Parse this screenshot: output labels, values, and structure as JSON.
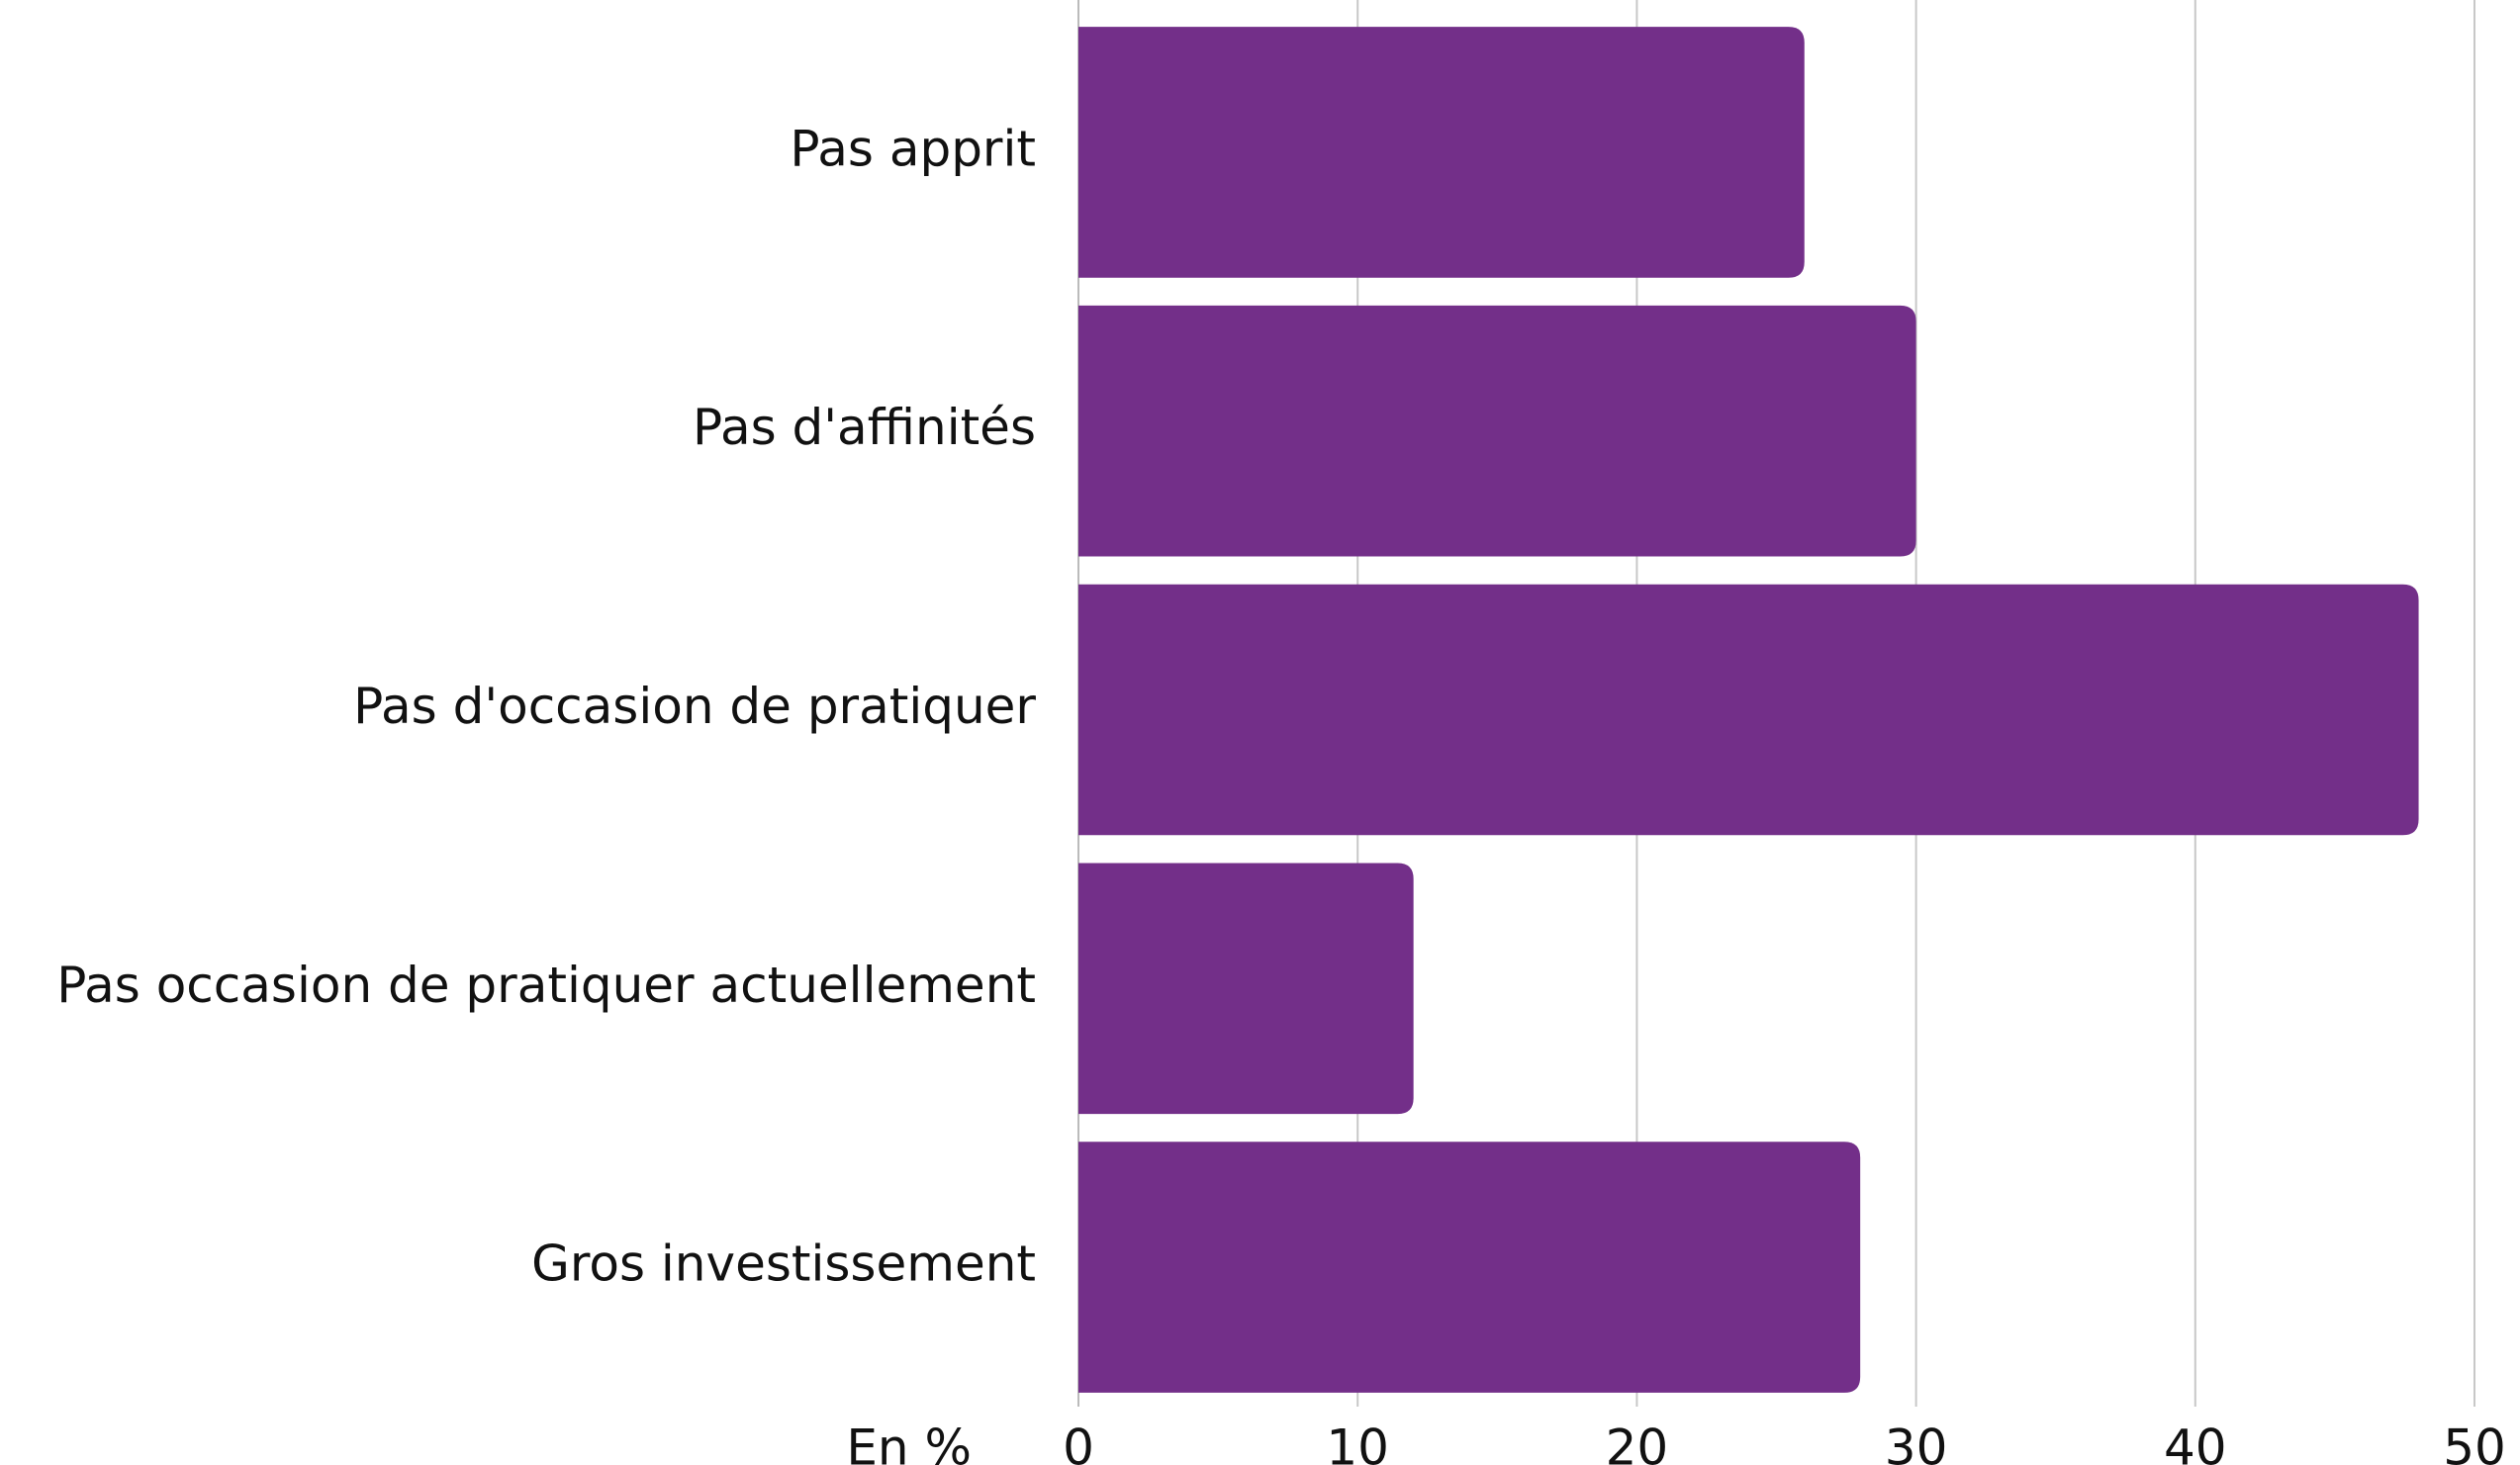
{
  "chart_data": {
    "type": "hbar",
    "categories": [
      "Pas apprit",
      "Pas d'affinités",
      "Pas d'occasion de pratiquer",
      "Pas occasion de pratiquer actuellement",
      "Gros investissement"
    ],
    "values": [
      26,
      30,
      48,
      12,
      28
    ],
    "color": "#732f89",
    "x_label": "En %",
    "xlim": [
      0,
      50
    ],
    "xticks": [
      0,
      10,
      20,
      30,
      40,
      50
    ],
    "grid": true
  }
}
